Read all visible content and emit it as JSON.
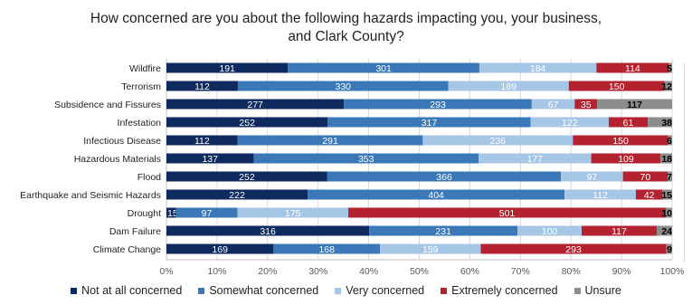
{
  "chart_data": {
    "type": "bar",
    "orientation": "horizontal",
    "stacked": "percent",
    "title_lines": [
      "How concerned are you about the following hazards impacting you, your business,",
      "and Clark County?"
    ],
    "categories": [
      "Wildfire",
      "Terrorism",
      "Subsidence and Fissures",
      "Infestation",
      "Infectious Disease",
      "Hazardous Materials",
      "Flood",
      "Earthquake and Seismic Hazards",
      "Drought",
      "Dam Failure",
      "Climate Change"
    ],
    "series": [
      {
        "name": "Not at all concerned",
        "color": "#0e2a5e",
        "values": [
          191,
          112,
          277,
          252,
          112,
          137,
          252,
          222,
          15,
          316,
          169
        ]
      },
      {
        "name": "Somewhat concerned",
        "color": "#3a78b8",
        "values": [
          301,
          330,
          293,
          317,
          291,
          353,
          366,
          404,
          97,
          231,
          168
        ]
      },
      {
        "name": "Very concerned",
        "color": "#a6c6e6",
        "values": [
          184,
          189,
          67,
          122,
          236,
          177,
          97,
          112,
          175,
          100,
          159
        ]
      },
      {
        "name": "Extremely concerned",
        "color": "#b5222f",
        "values": [
          114,
          150,
          35,
          61,
          150,
          109,
          70,
          42,
          501,
          117,
          293
        ]
      },
      {
        "name": "Unsure",
        "color": "#8c8c8c",
        "values": [
          5,
          12,
          117,
          38,
          6,
          18,
          7,
          15,
          10,
          24,
          9
        ]
      }
    ],
    "x_ticks": [
      "0%",
      "10%",
      "20%",
      "30%",
      "40%",
      "50%",
      "60%",
      "70%",
      "80%",
      "90%",
      "100%"
    ],
    "xlim": [
      0,
      100
    ],
    "grid": true,
    "legend_position": "bottom"
  }
}
